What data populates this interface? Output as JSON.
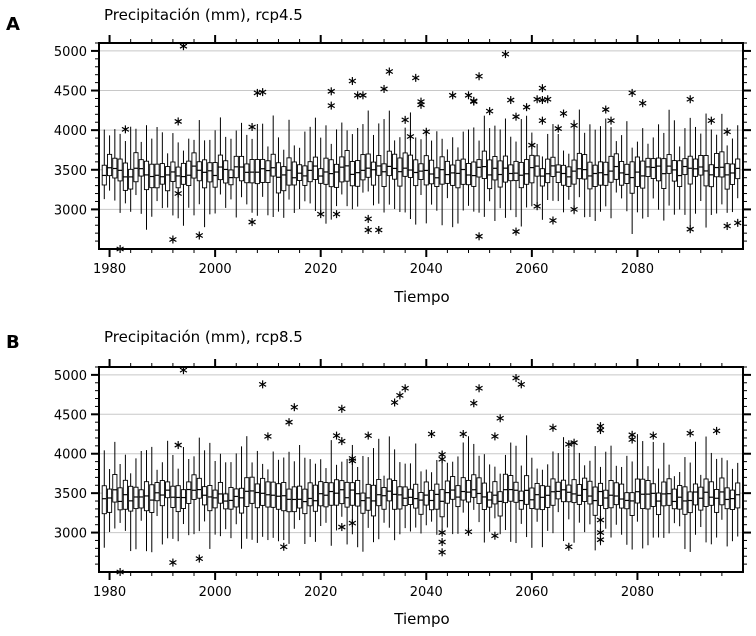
{
  "chart_data": [
    {
      "type": "boxplot",
      "panel_label": "A",
      "title": "Precipitación (mm), rcp4.5",
      "xlabel": "Tiempo",
      "ylabel": "",
      "xlim": [
        1978,
        2100
      ],
      "ylim": [
        2500,
        5100
      ],
      "xticks": [
        1980,
        2000,
        2020,
        2040,
        2060,
        2080
      ],
      "yticks": [
        3000,
        3500,
        4000,
        4500,
        5000
      ],
      "grid": true,
      "seed": 11,
      "outliers": [
        {
          "x": 1982,
          "y": 2500
        },
        {
          "x": 1983,
          "y": 4010
        },
        {
          "x": 1992,
          "y": 2620
        },
        {
          "x": 1993,
          "y": 4110
        },
        {
          "x": 1993,
          "y": 3200
        },
        {
          "x": 1994,
          "y": 5060
        },
        {
          "x": 1997,
          "y": 2670
        },
        {
          "x": 2007,
          "y": 4040
        },
        {
          "x": 2007,
          "y": 2840
        },
        {
          "x": 2008,
          "y": 4470
        },
        {
          "x": 2009,
          "y": 4480
        },
        {
          "x": 2020,
          "y": 2940
        },
        {
          "x": 2022,
          "y": 4490
        },
        {
          "x": 2022,
          "y": 4310
        },
        {
          "x": 2023,
          "y": 2940
        },
        {
          "x": 2026,
          "y": 4620
        },
        {
          "x": 2027,
          "y": 4440
        },
        {
          "x": 2028,
          "y": 4440
        },
        {
          "x": 2029,
          "y": 2880
        },
        {
          "x": 2029,
          "y": 2740
        },
        {
          "x": 2031,
          "y": 2740
        },
        {
          "x": 2032,
          "y": 4520
        },
        {
          "x": 2033,
          "y": 4740
        },
        {
          "x": 2036,
          "y": 4130
        },
        {
          "x": 2037,
          "y": 3920
        },
        {
          "x": 2038,
          "y": 4660
        },
        {
          "x": 2039,
          "y": 4360
        },
        {
          "x": 2039,
          "y": 4320
        },
        {
          "x": 2040,
          "y": 3980
        },
        {
          "x": 2045,
          "y": 4440
        },
        {
          "x": 2048,
          "y": 4440
        },
        {
          "x": 2049,
          "y": 4360
        },
        {
          "x": 2049,
          "y": 4370
        },
        {
          "x": 2050,
          "y": 4680
        },
        {
          "x": 2050,
          "y": 2660
        },
        {
          "x": 2052,
          "y": 4240
        },
        {
          "x": 2055,
          "y": 4960
        },
        {
          "x": 2056,
          "y": 4380
        },
        {
          "x": 2057,
          "y": 4170
        },
        {
          "x": 2057,
          "y": 2720
        },
        {
          "x": 2059,
          "y": 4290
        },
        {
          "x": 2060,
          "y": 3810
        },
        {
          "x": 2061,
          "y": 4390
        },
        {
          "x": 2061,
          "y": 3040
        },
        {
          "x": 2062,
          "y": 4530
        },
        {
          "x": 2062,
          "y": 4380
        },
        {
          "x": 2062,
          "y": 4120
        },
        {
          "x": 2063,
          "y": 4390
        },
        {
          "x": 2064,
          "y": 2860
        },
        {
          "x": 2065,
          "y": 4020
        },
        {
          "x": 2066,
          "y": 4210
        },
        {
          "x": 2068,
          "y": 4060
        },
        {
          "x": 2068,
          "y": 3000
        },
        {
          "x": 2074,
          "y": 4260
        },
        {
          "x": 2075,
          "y": 4120
        },
        {
          "x": 2079,
          "y": 4470
        },
        {
          "x": 2081,
          "y": 4340
        },
        {
          "x": 2090,
          "y": 4390
        },
        {
          "x": 2090,
          "y": 2750
        },
        {
          "x": 2094,
          "y": 4120
        },
        {
          "x": 2097,
          "y": 3980
        },
        {
          "x": 2097,
          "y": 2790
        },
        {
          "x": 2099,
          "y": 2830
        }
      ]
    },
    {
      "type": "boxplot",
      "panel_label": "B",
      "title": "Precipitación (mm), rcp8.5",
      "xlabel": "Tiempo",
      "ylabel": "",
      "xlim": [
        1978,
        2100
      ],
      "ylim": [
        2500,
        5100
      ],
      "xticks": [
        1980,
        2000,
        2020,
        2040,
        2060,
        2080
      ],
      "yticks": [
        3000,
        3500,
        4000,
        4500,
        5000
      ],
      "grid": true,
      "seed": 29,
      "outliers": [
        {
          "x": 1982,
          "y": 2500
        },
        {
          "x": 1992,
          "y": 2620
        },
        {
          "x": 1993,
          "y": 4110
        },
        {
          "x": 1994,
          "y": 5060
        },
        {
          "x": 1997,
          "y": 2670
        },
        {
          "x": 2009,
          "y": 4880
        },
        {
          "x": 2010,
          "y": 4220
        },
        {
          "x": 2013,
          "y": 2820
        },
        {
          "x": 2014,
          "y": 4400
        },
        {
          "x": 2015,
          "y": 4590
        },
        {
          "x": 2023,
          "y": 4230
        },
        {
          "x": 2024,
          "y": 4570
        },
        {
          "x": 2024,
          "y": 4160
        },
        {
          "x": 2024,
          "y": 3070
        },
        {
          "x": 2026,
          "y": 3940
        },
        {
          "x": 2026,
          "y": 3910
        },
        {
          "x": 2026,
          "y": 3120
        },
        {
          "x": 2029,
          "y": 4230
        },
        {
          "x": 2034,
          "y": 4650
        },
        {
          "x": 2035,
          "y": 4740
        },
        {
          "x": 2036,
          "y": 4830
        },
        {
          "x": 2041,
          "y": 4250
        },
        {
          "x": 2043,
          "y": 3990
        },
        {
          "x": 2043,
          "y": 3930
        },
        {
          "x": 2043,
          "y": 3000
        },
        {
          "x": 2043,
          "y": 2880
        },
        {
          "x": 2043,
          "y": 2750
        },
        {
          "x": 2047,
          "y": 4250
        },
        {
          "x": 2048,
          "y": 3010
        },
        {
          "x": 2049,
          "y": 4640
        },
        {
          "x": 2050,
          "y": 4830
        },
        {
          "x": 2053,
          "y": 4220
        },
        {
          "x": 2053,
          "y": 2960
        },
        {
          "x": 2054,
          "y": 4450
        },
        {
          "x": 2057,
          "y": 4960
        },
        {
          "x": 2058,
          "y": 4880
        },
        {
          "x": 2064,
          "y": 4330
        },
        {
          "x": 2067,
          "y": 4120
        },
        {
          "x": 2067,
          "y": 2820
        },
        {
          "x": 2068,
          "y": 4140
        },
        {
          "x": 2073,
          "y": 4350
        },
        {
          "x": 2073,
          "y": 4300
        },
        {
          "x": 2073,
          "y": 3160
        },
        {
          "x": 2073,
          "y": 3000
        },
        {
          "x": 2073,
          "y": 2910
        },
        {
          "x": 2079,
          "y": 4240
        },
        {
          "x": 2079,
          "y": 4180
        },
        {
          "x": 2083,
          "y": 4230
        },
        {
          "x": 2090,
          "y": 4260
        },
        {
          "x": 2095,
          "y": 4290
        }
      ]
    }
  ]
}
